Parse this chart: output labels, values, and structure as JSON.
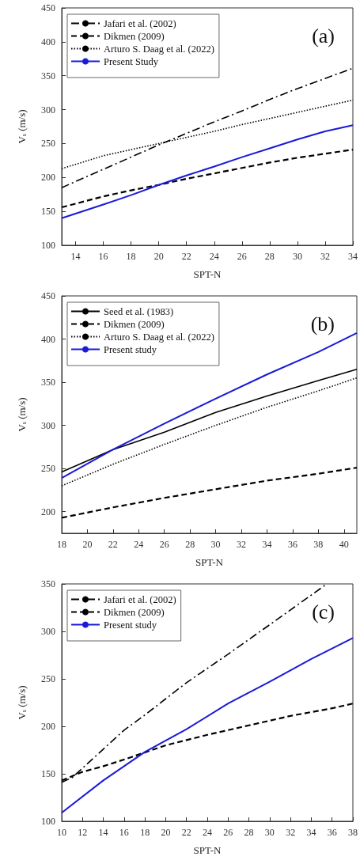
{
  "chart_data": [
    {
      "type": "line",
      "xlabel": "SPT-N",
      "ylabel": "V$_{s}$ (m/s)",
      "annotations": [
        "(a)"
      ],
      "xlim": [
        13,
        34
      ],
      "xticks": [
        14,
        16,
        18,
        20,
        22,
        24,
        26,
        28,
        30,
        32,
        34
      ],
      "ylim": [
        100,
        450
      ],
      "yticks": [
        100,
        150,
        200,
        250,
        300,
        350,
        400,
        450
      ],
      "legend": "top left",
      "grid": false,
      "marker": "none",
      "series": [
        {
          "name": "Jafari et al. (2002)",
          "color": "#000000",
          "line_style": "dashdot",
          "x": [
            13,
            16,
            18,
            20,
            22,
            24,
            26,
            28,
            30,
            32,
            34
          ],
          "values": [
            185,
            212,
            230,
            248,
            265,
            282,
            298,
            315,
            331,
            346,
            361
          ]
        },
        {
          "name": "Dikmen (2009)",
          "color": "#000000",
          "line_style": "dashed",
          "x": [
            13,
            16,
            18,
            20,
            22,
            24,
            26,
            28,
            30,
            32,
            34
          ],
          "values": [
            156,
            172,
            181,
            189,
            198,
            206,
            214,
            222,
            229,
            235,
            241
          ]
        },
        {
          "name": "Arturo S. Daag et al. (2022)",
          "color": "#000000",
          "line_style": "dotted",
          "x": [
            13,
            16,
            18,
            20,
            22,
            24,
            26,
            28,
            30,
            32,
            34
          ],
          "values": [
            213,
            232,
            241,
            250,
            259,
            268,
            278,
            287,
            296,
            305,
            314
          ]
        },
        {
          "name": "Present Study",
          "color": "#1a1ad8",
          "line_style": "solid",
          "x": [
            13,
            16,
            18,
            20,
            22,
            24,
            26,
            28,
            30,
            32,
            34
          ],
          "values": [
            140,
            160,
            174,
            189,
            203,
            216,
            230,
            243,
            256,
            268,
            277
          ]
        }
      ]
    },
    {
      "type": "line",
      "xlabel": "SPT-N",
      "ylabel": "V$_{s}$ (m/s)",
      "annotations": [
        "(b)"
      ],
      "xlim": [
        18,
        41
      ],
      "xticks": [
        18,
        20,
        22,
        24,
        26,
        28,
        30,
        32,
        34,
        36,
        38,
        40
      ],
      "ylim": [
        175,
        450
      ],
      "yticks": [
        200,
        250,
        300,
        350,
        400,
        450
      ],
      "legend": "top left",
      "grid": false,
      "marker": "none",
      "series": [
        {
          "name": "Seed et al. (1983)",
          "color": "#000000",
          "line_style": "solid",
          "x": [
            18,
            22,
            26,
            30,
            34,
            38,
            41
          ],
          "values": [
            246,
            272,
            292,
            315,
            334,
            352,
            365
          ]
        },
        {
          "name": "Dikmen (2009)",
          "color": "#000000",
          "line_style": "dashed",
          "x": [
            18,
            22,
            26,
            30,
            34,
            38,
            41
          ],
          "values": [
            193,
            205,
            216,
            226,
            236,
            244,
            251
          ]
        },
        {
          "name": "Arturo S. Daag et al. (2022)",
          "color": "#000000",
          "line_style": "dotted",
          "x": [
            18,
            22,
            26,
            30,
            34,
            38,
            41
          ],
          "values": [
            230,
            255,
            278,
            300,
            321,
            340,
            355
          ]
        },
        {
          "name": "Present study",
          "color": "#1a1ad8",
          "line_style": "solid",
          "x": [
            18,
            22,
            26,
            30,
            34,
            38,
            41
          ],
          "values": [
            239,
            272,
            302,
            331,
            359,
            385,
            407
          ]
        }
      ]
    },
    {
      "type": "line",
      "xlabel": "SPT-N",
      "ylabel": "V$_{s}$ (m/s)",
      "annotations": [
        "(c)"
      ],
      "xlim": [
        10,
        38
      ],
      "xticks": [
        10,
        12,
        14,
        16,
        18,
        20,
        22,
        24,
        26,
        28,
        30,
        32,
        34,
        36,
        38
      ],
      "ylim": [
        100,
        350
      ],
      "yticks": [
        100,
        150,
        200,
        250,
        300,
        350
      ],
      "legend": "top left",
      "grid": false,
      "marker": "none",
      "series": [
        {
          "name": "Jafari et al. (2002)",
          "color": "#000000",
          "line_style": "dashdot",
          "x": [
            10,
            11,
            14,
            16,
            18,
            22,
            26,
            30,
            35.5
          ],
          "values": [
            141,
            146,
            176,
            196,
            212,
            246,
            276,
            307,
            350
          ]
        },
        {
          "name": "Dikmen (2009)",
          "color": "#000000",
          "line_style": "dashed",
          "x": [
            10,
            12,
            14,
            16,
            20,
            24,
            28,
            32,
            36,
            38
          ],
          "values": [
            143,
            152,
            158,
            165,
            180,
            191,
            201,
            211,
            219,
            224
          ]
        },
        {
          "name": "Present study",
          "color": "#1a1ad8",
          "line_style": "solid",
          "x": [
            10,
            14,
            18,
            22,
            26,
            30,
            34,
            38
          ],
          "values": [
            109,
            143,
            173,
            197,
            224,
            247,
            271,
            293
          ]
        }
      ]
    }
  ]
}
